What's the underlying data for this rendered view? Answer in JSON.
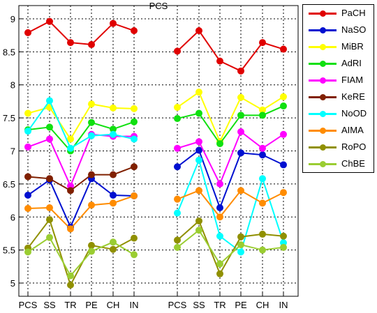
{
  "chart_data": {
    "type": "line",
    "title": "PCS",
    "xlabel": "",
    "ylabel": "",
    "ylim": [
      4.8,
      9.2
    ],
    "yticks": [
      "5",
      "5.5",
      "6",
      "6.5",
      "7",
      "7.5",
      "8",
      "8.5",
      "9"
    ],
    "panels": [
      {
        "categories": [
          "PCS",
          "SS",
          "TR",
          "PE",
          "CH",
          "IN"
        ]
      },
      {
        "categories": [
          "PCS",
          "SS",
          "TR",
          "PE",
          "CH",
          "IN"
        ]
      }
    ],
    "grid": true,
    "legend_position": "right",
    "series": [
      {
        "name": "PaCH",
        "color": "#e00000",
        "left": [
          8.79,
          8.96,
          8.64,
          8.61,
          8.93,
          8.82
        ],
        "right": [
          8.51,
          8.82,
          8.36,
          8.21,
          8.64,
          8.54
        ]
      },
      {
        "name": "NaSO",
        "color": "#0010d0",
        "left": [
          6.33,
          6.56,
          5.85,
          6.58,
          6.33,
          6.32
        ],
        "right": [
          6.76,
          7.01,
          6.14,
          6.97,
          6.94,
          6.79
        ]
      },
      {
        "name": "MiBR",
        "color": "#ffff00",
        "left": [
          7.57,
          7.66,
          7.18,
          7.71,
          7.65,
          7.64
        ],
        "right": [
          7.66,
          7.89,
          7.14,
          7.81,
          7.62,
          7.82
        ]
      },
      {
        "name": "AdRI",
        "color": "#10e010",
        "left": [
          7.32,
          7.36,
          7.0,
          7.43,
          7.33,
          7.44
        ],
        "right": [
          7.49,
          7.57,
          7.11,
          7.54,
          7.54,
          7.68
        ]
      },
      {
        "name": "FIAM",
        "color": "#ff00ff",
        "left": [
          7.06,
          7.18,
          6.47,
          7.25,
          7.22,
          7.22
        ],
        "right": [
          7.04,
          7.14,
          6.5,
          7.29,
          7.04,
          7.25
        ]
      },
      {
        "name": "KeRE",
        "color": "#802000",
        "left": [
          6.61,
          6.58,
          6.4,
          6.64,
          6.64,
          6.76
        ],
        "right": []
      },
      {
        "name": "NoOD",
        "color": "#00ffff",
        "left": [
          7.3,
          7.76,
          7.04,
          7.23,
          7.25,
          7.18
        ],
        "right": [
          6.06,
          6.86,
          5.71,
          5.47,
          6.58,
          5.61
        ]
      },
      {
        "name": "AIMA",
        "color": "#ff8c00",
        "left": [
          6.13,
          6.14,
          5.82,
          6.18,
          6.21,
          6.32
        ],
        "right": [
          6.27,
          6.4,
          6.0,
          6.4,
          6.21,
          6.37
        ]
      },
      {
        "name": "RoPO",
        "color": "#909000",
        "left": [
          5.53,
          5.96,
          4.97,
          5.57,
          5.51,
          5.68
        ],
        "right": [
          5.65,
          5.94,
          5.14,
          5.7,
          5.74,
          5.71
        ]
      },
      {
        "name": "ChBE",
        "color": "#9acd32",
        "left": [
          5.47,
          5.69,
          5.11,
          5.48,
          5.62,
          5.43
        ],
        "right": [
          5.54,
          5.8,
          5.29,
          5.58,
          5.5,
          5.54
        ]
      }
    ]
  }
}
